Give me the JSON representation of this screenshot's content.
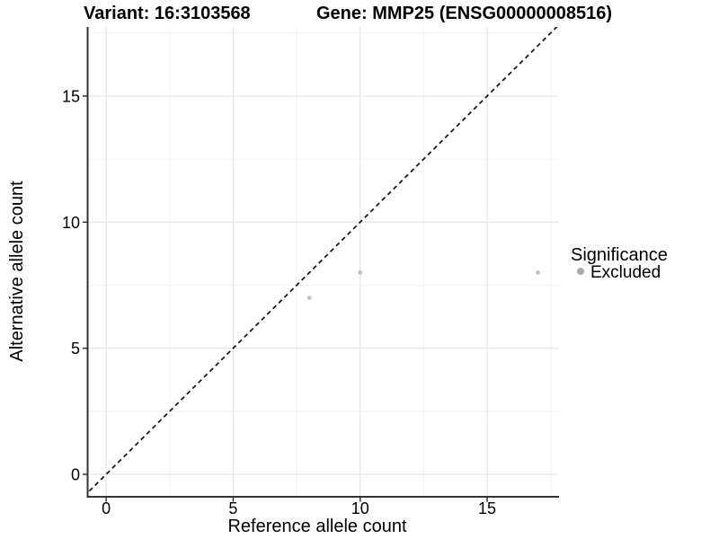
{
  "titles": {
    "variant": "Variant: 16:3103568",
    "gene": "Gene: MMP25 (ENSG00000008516)"
  },
  "chart_data": {
    "type": "scatter",
    "title": "Variant: 16:3103568  /  Gene: MMP25 (ENSG00000008516)",
    "xlabel": "Reference allele count",
    "ylabel": "Alternative allele count",
    "x_ticks": [
      0,
      5,
      10,
      15
    ],
    "y_ticks": [
      0,
      5,
      10,
      15
    ],
    "xlim": [
      -0.73,
      17.83
    ],
    "ylim": [
      -0.89,
      17.74
    ],
    "grid": "major+minor",
    "legend_position": "right",
    "reference_line": {
      "kind": "identity",
      "style": "dashed",
      "from": [
        -0.89,
        -0.89
      ],
      "to": [
        17.83,
        17.83
      ],
      "color": "#1a1a1a"
    },
    "series": [
      {
        "name": "Excluded",
        "color": "#c3c3c3",
        "points": [
          [
            8,
            7
          ],
          [
            10,
            8
          ],
          [
            17,
            8
          ]
        ]
      }
    ],
    "legend": {
      "title": "Significance",
      "entries": [
        {
          "label": "Excluded",
          "color": "#aaaaaa"
        }
      ]
    }
  },
  "colors": {
    "background": "#ffffff",
    "axis_line": "#333333",
    "grid_major": "#e5e5e5",
    "grid_minor": "#f2f2f2",
    "text": "#000000"
  }
}
